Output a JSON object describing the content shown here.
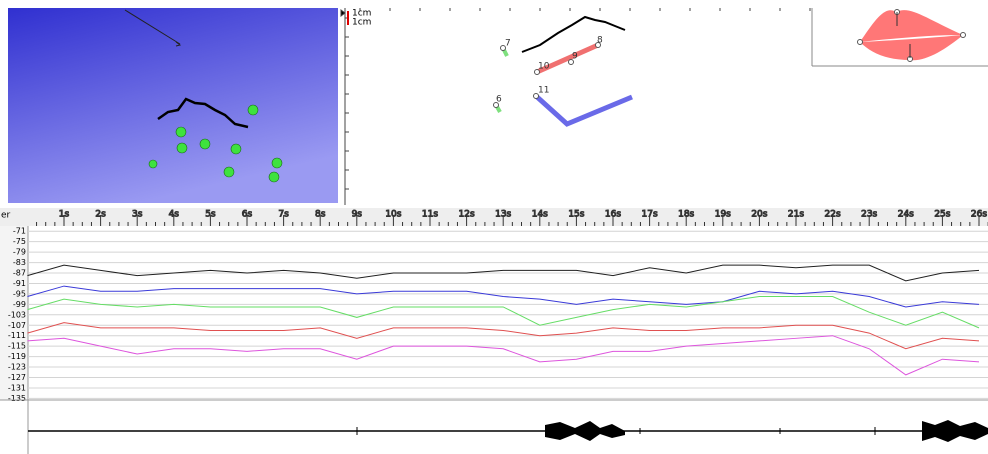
{
  "scale_labels": [
    "1cm",
    "1cm"
  ],
  "sensor_labels": [
    "7",
    "8",
    "9",
    "10",
    "6",
    "11"
  ],
  "time_axis": {
    "labels": [
      "1s",
      "2s",
      "3s",
      "4s",
      "5s",
      "6s",
      "7s",
      "8s",
      "9s",
      "10s",
      "11s",
      "12s",
      "13s",
      "14s",
      "15s",
      "16s",
      "17s",
      "18s",
      "19s",
      "20s",
      "21s",
      "22s",
      "23s",
      "24s",
      "25s",
      "26s"
    ]
  },
  "trace_panel": {
    "clipped_label": "er",
    "ylim": [
      -69,
      -136
    ],
    "yticks": [
      -71,
      -75,
      -79,
      -83,
      -87,
      -91,
      -95,
      -99,
      -103,
      -107,
      -111,
      -115,
      -119,
      -123,
      -127,
      -131,
      -135
    ],
    "grid": true,
    "x": [
      0,
      1,
      2,
      3,
      4,
      5,
      6,
      7,
      8,
      9,
      10,
      11,
      12,
      13,
      14,
      15,
      16,
      17,
      18,
      19,
      20,
      21,
      22,
      23,
      24,
      25,
      26
    ],
    "traces": [
      {
        "color": "#202020",
        "values": [
          -88,
          -84,
          -86,
          -88,
          -87,
          -86,
          -87,
          -86,
          -87,
          -89,
          -87,
          -87,
          -87,
          -86,
          -86,
          -86,
          -88,
          -85,
          -87,
          -84,
          -84,
          -85,
          -84,
          -84,
          -90,
          -87,
          -86
        ]
      },
      {
        "color": "#3a3ad8",
        "values": [
          -96,
          -92,
          -94,
          -94,
          -93,
          -93,
          -93,
          -93,
          -93,
          -95,
          -94,
          -94,
          -94,
          -96,
          -97,
          -99,
          -97,
          -98,
          -99,
          -98,
          -94,
          -95,
          -94,
          -96,
          -100,
          -98,
          -99
        ]
      },
      {
        "color": "#66dd66",
        "values": [
          -101,
          -97,
          -99,
          -100,
          -99,
          -100,
          -100,
          -100,
          -100,
          -104,
          -100,
          -100,
          -100,
          -100,
          -107,
          -104,
          -101,
          -99,
          -100,
          -98,
          -96,
          -96,
          -96,
          -102,
          -107,
          -102,
          -108
        ]
      },
      {
        "color": "#e05050",
        "values": [
          -110,
          -106,
          -108,
          -108,
          -108,
          -109,
          -109,
          -109,
          -108,
          -112,
          -108,
          -108,
          -108,
          -109,
          -111,
          -110,
          -108,
          -109,
          -109,
          -108,
          -108,
          -107,
          -107,
          -110,
          -116,
          -112,
          -113
        ]
      },
      {
        "color": "#dd55dd",
        "values": [
          -113,
          -112,
          -115,
          -118,
          -116,
          -116,
          -117,
          -116,
          -116,
          -120,
          -115,
          -115,
          -115,
          -116,
          -121,
          -120,
          -117,
          -117,
          -115,
          -114,
          -113,
          -112,
          -111,
          -116,
          -126,
          -120,
          -121
        ]
      }
    ]
  }
}
